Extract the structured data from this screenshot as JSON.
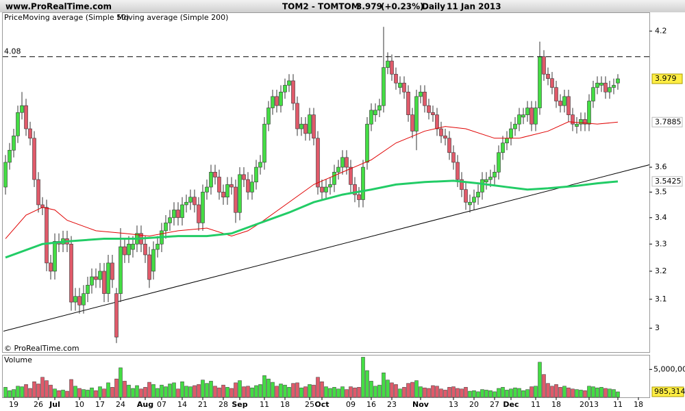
{
  "chart_data": {
    "type": "candlestick",
    "site": "www.ProRealTime.com",
    "title": "TOM2 - TOMTOM",
    "change": {
      "value": 0.23,
      "label": "(+0.23%)"
    },
    "period": "Daily",
    "date": "11 Jan 2013",
    "price_label": "Price",
    "copyright": "© ProRealTime.com",
    "log_scale": true,
    "up_color": "#44dd44",
    "down_color": "#e05a6a",
    "xlim": [
      -0.67,
      156.67
    ],
    "ylim": [
      2.92,
      4.29
    ],
    "yticks": [
      4.2,
      3.6,
      3.5,
      3.4,
      3.3,
      3.2,
      3.1,
      3
    ],
    "xticks": [
      {
        "value": 2,
        "label": "19"
      },
      {
        "value": 8,
        "label": "26"
      },
      {
        "value": 12,
        "label": "Jul"
      },
      {
        "value": 18,
        "label": "10"
      },
      {
        "value": 23,
        "label": "17"
      },
      {
        "value": 28,
        "label": "24"
      },
      {
        "value": 34,
        "label": "Aug"
      },
      {
        "value": 38,
        "label": "07"
      },
      {
        "value": 43,
        "label": "14"
      },
      {
        "value": 48,
        "label": "21"
      },
      {
        "value": 53,
        "label": "28"
      },
      {
        "value": 57,
        "label": "Sep"
      },
      {
        "value": 63,
        "label": "11"
      },
      {
        "value": 68,
        "label": "18"
      },
      {
        "value": 74,
        "label": "25"
      },
      {
        "value": 77,
        "label": "Oct"
      },
      {
        "value": 84,
        "label": "09"
      },
      {
        "value": 89,
        "label": "16"
      },
      {
        "value": 94,
        "label": "23"
      },
      {
        "value": 101,
        "label": "Nov"
      },
      {
        "value": 109,
        "label": "13"
      },
      {
        "value": 114,
        "label": "20"
      },
      {
        "value": 119,
        "label": "27"
      },
      {
        "value": 123,
        "label": "Dec"
      },
      {
        "value": 129,
        "label": "11"
      },
      {
        "value": 134,
        "label": "18"
      },
      {
        "value": 142,
        "label": "2013"
      },
      {
        "value": 149,
        "label": "11"
      },
      {
        "value": 154,
        "label": "18"
      }
    ],
    "open": [
      3.52,
      3.62,
      3.67,
      3.73,
      3.83,
      3.86,
      3.76,
      3.72,
      3.55,
      3.45,
      3.44,
      3.23,
      3.2,
      3.31,
      3.3,
      3.32,
      3.3,
      3.09,
      3.11,
      3.08,
      3.12,
      3.15,
      3.18,
      3.17,
      3.2,
      3.12,
      3.23,
      3.12,
      3.12,
      3.29,
      3.26,
      3.28,
      3.3,
      3.34,
      3.3,
      3.26,
      3.2,
      3.28,
      3.3,
      3.35,
      3.38,
      3.4,
      3.43,
      3.4,
      3.45,
      3.46,
      3.48,
      3.45,
      3.38,
      3.5,
      3.52,
      3.58,
      3.56,
      3.5,
      3.48,
      3.53,
      3.52,
      3.42,
      3.57,
      3.55,
      3.5,
      3.54,
      3.6,
      3.62,
      3.78,
      3.85,
      3.9,
      3.86,
      3.92,
      3.95,
      3.97,
      3.87,
      3.76,
      3.78,
      3.74,
      3.82,
      3.72,
      3.52,
      3.5,
      3.52,
      3.53,
      3.58,
      3.6,
      3.64,
      3.6,
      3.53,
      3.49,
      3.47,
      3.62,
      3.78,
      3.82,
      3.84,
      3.86,
      4.03,
      4.06,
      4.0,
      3.94,
      3.96,
      3.92,
      3.82,
      3.75,
      3.9,
      3.92,
      3.86,
      3.83,
      3.82,
      3.76,
      3.73,
      3.72,
      3.66,
      3.62,
      3.55,
      3.51,
      3.45,
      3.46,
      3.48,
      3.5,
      3.54,
      3.55,
      3.56,
      3.58,
      3.66,
      3.7,
      3.72,
      3.76,
      3.78,
      3.81,
      3.82,
      3.85,
      3.78,
      3.85,
      4.08,
      4.0,
      3.98,
      3.94,
      3.88,
      3.86,
      3.9,
      3.82,
      3.77,
      3.78,
      3.8,
      3.78,
      3.88,
      3.94,
      3.95,
      3.96,
      3.92,
      3.94,
      3.96
    ],
    "high": [
      3.65,
      3.7,
      3.76,
      3.86,
      3.92,
      3.89,
      3.79,
      3.75,
      3.58,
      3.48,
      3.47,
      3.26,
      3.34,
      3.34,
      3.35,
      3.35,
      3.33,
      3.14,
      3.14,
      3.15,
      3.18,
      3.21,
      3.21,
      3.23,
      3.23,
      3.26,
      3.26,
      3.14,
      3.36,
      3.32,
      3.33,
      3.33,
      3.37,
      3.37,
      3.33,
      3.29,
      3.31,
      3.33,
      3.38,
      3.41,
      3.43,
      3.46,
      3.46,
      3.48,
      3.49,
      3.51,
      3.51,
      3.48,
      3.53,
      3.55,
      3.61,
      3.61,
      3.59,
      3.53,
      3.56,
      3.56,
      3.55,
      3.6,
      3.6,
      3.58,
      3.57,
      3.63,
      3.65,
      3.81,
      3.88,
      3.93,
      3.93,
      3.95,
      3.98,
      4.0,
      4.0,
      3.9,
      3.81,
      3.81,
      3.85,
      3.85,
      3.75,
      3.55,
      3.55,
      3.56,
      3.61,
      3.63,
      3.67,
      3.67,
      3.63,
      3.56,
      3.52,
      3.63,
      3.81,
      3.87,
      3.87,
      3.89,
      4.22,
      4.1,
      4.09,
      4.03,
      3.99,
      3.99,
      3.95,
      3.85,
      3.93,
      3.95,
      3.95,
      3.89,
      3.86,
      3.85,
      3.79,
      3.76,
      3.75,
      3.69,
      3.65,
      3.58,
      3.54,
      3.49,
      3.51,
      3.53,
      3.58,
      3.58,
      3.59,
      3.61,
      3.69,
      3.73,
      3.75,
      3.79,
      3.81,
      3.85,
      3.85,
      3.88,
      3.88,
      3.88,
      4.15,
      4.11,
      4.03,
      4.01,
      3.97,
      3.91,
      3.93,
      3.93,
      3.85,
      3.81,
      3.83,
      3.83,
      3.91,
      3.97,
      3.99,
      3.99,
      3.99,
      3.97,
      3.98,
      4.0
    ],
    "low": [
      3.49,
      3.59,
      3.64,
      3.7,
      3.8,
      3.73,
      3.69,
      3.52,
      3.42,
      3.41,
      3.2,
      3.17,
      3.17,
      3.27,
      3.27,
      3.27,
      3.06,
      3.06,
      3.05,
      3.05,
      3.09,
      3.12,
      3.14,
      3.14,
      3.09,
      3.09,
      3.14,
      2.95,
      3.09,
      3.23,
      3.23,
      3.25,
      3.27,
      3.27,
      3.23,
      3.14,
      3.17,
      3.25,
      3.27,
      3.32,
      3.35,
      3.37,
      3.37,
      3.37,
      3.42,
      3.43,
      3.42,
      3.35,
      3.35,
      3.47,
      3.49,
      3.53,
      3.47,
      3.45,
      3.45,
      3.49,
      3.38,
      3.39,
      3.52,
      3.47,
      3.47,
      3.51,
      3.57,
      3.59,
      3.75,
      3.82,
      3.83,
      3.83,
      3.89,
      3.92,
      3.84,
      3.73,
      3.73,
      3.71,
      3.71,
      3.69,
      3.49,
      3.47,
      3.47,
      3.49,
      3.5,
      3.55,
      3.57,
      3.57,
      3.5,
      3.46,
      3.44,
      3.44,
      3.59,
      3.75,
      3.79,
      3.81,
      3.83,
      4.0,
      3.97,
      3.93,
      3.91,
      3.89,
      3.79,
      3.72,
      3.67,
      3.87,
      3.83,
      3.8,
      3.79,
      3.73,
      3.7,
      3.69,
      3.63,
      3.59,
      3.52,
      3.48,
      3.43,
      3.42,
      3.43,
      3.45,
      3.47,
      3.51,
      3.52,
      3.53,
      3.55,
      3.63,
      3.67,
      3.69,
      3.73,
      3.75,
      3.78,
      3.79,
      3.75,
      3.75,
      3.82,
      3.97,
      3.95,
      3.91,
      3.85,
      3.83,
      3.83,
      3.79,
      3.75,
      3.74,
      3.75,
      3.75,
      3.75,
      3.85,
      3.91,
      3.92,
      3.89,
      3.89,
      3.91,
      3.93
    ],
    "close": [
      3.62,
      3.67,
      3.73,
      3.83,
      3.86,
      3.76,
      3.72,
      3.55,
      3.45,
      3.44,
      3.23,
      3.2,
      3.31,
      3.3,
      3.32,
      3.3,
      3.09,
      3.11,
      3.08,
      3.12,
      3.15,
      3.18,
      3.17,
      3.2,
      3.12,
      3.23,
      3.17,
      2.97,
      3.29,
      3.26,
      3.3,
      3.3,
      3.34,
      3.3,
      3.26,
      3.17,
      3.28,
      3.3,
      3.35,
      3.38,
      3.4,
      3.43,
      3.4,
      3.45,
      3.46,
      3.48,
      3.45,
      3.38,
      3.5,
      3.52,
      3.58,
      3.56,
      3.5,
      3.48,
      3.53,
      3.52,
      3.42,
      3.57,
      3.55,
      3.5,
      3.54,
      3.6,
      3.62,
      3.78,
      3.85,
      3.9,
      3.86,
      3.92,
      3.95,
      3.97,
      3.87,
      3.76,
      3.78,
      3.74,
      3.82,
      3.72,
      3.52,
      3.5,
      3.52,
      3.53,
      3.58,
      3.6,
      3.64,
      3.6,
      3.53,
      3.49,
      3.47,
      3.6,
      3.78,
      3.84,
      3.84,
      3.86,
      4.03,
      4.06,
      4.0,
      3.96,
      3.96,
      3.92,
      3.82,
      3.75,
      3.9,
      3.92,
      3.86,
      3.83,
      3.82,
      3.76,
      3.73,
      3.72,
      3.66,
      3.62,
      3.55,
      3.51,
      3.46,
      3.46,
      3.48,
      3.5,
      3.55,
      3.55,
      3.56,
      3.58,
      3.66,
      3.7,
      3.72,
      3.76,
      3.78,
      3.82,
      3.82,
      3.85,
      3.78,
      3.85,
      4.08,
      4.0,
      3.98,
      3.94,
      3.88,
      3.86,
      3.9,
      3.82,
      3.78,
      3.78,
      3.8,
      3.78,
      3.88,
      3.94,
      3.96,
      3.96,
      3.92,
      3.94,
      3.95,
      3.979
    ],
    "series": [
      {
        "name": "Moving average (Simple 50)",
        "color": "#e00000",
        "width": 1,
        "x": [
          0,
          5,
          9,
          12,
          15,
          22,
          29,
          35,
          42,
          49,
          55,
          59,
          62,
          69,
          75,
          82,
          89,
          95,
          102,
          107,
          112,
          119,
          125,
          132,
          137,
          144,
          149
        ],
        "values": [
          3.32,
          3.41,
          3.44,
          3.43,
          3.39,
          3.35,
          3.34,
          3.33,
          3.35,
          3.36,
          3.33,
          3.35,
          3.38,
          3.46,
          3.53,
          3.58,
          3.63,
          3.7,
          3.75,
          3.77,
          3.76,
          3.72,
          3.72,
          3.75,
          3.79,
          3.78,
          3.7885
        ]
      },
      {
        "name": "Moving average (Simple 200)",
        "color": "#22cc66",
        "width": 3,
        "x": [
          0,
          9,
          15,
          24,
          32,
          42,
          49,
          55,
          62,
          69,
          75,
          82,
          89,
          95,
          102,
          109,
          115,
          122,
          127,
          132,
          139,
          144,
          149
        ],
        "values": [
          3.25,
          3.3,
          3.31,
          3.32,
          3.32,
          3.33,
          3.33,
          3.34,
          3.38,
          3.42,
          3.46,
          3.49,
          3.51,
          3.53,
          3.54,
          3.545,
          3.535,
          3.52,
          3.51,
          3.515,
          3.525,
          3.535,
          3.5425
        ]
      }
    ],
    "trendline": {
      "x": [
        -0.5,
        156.7
      ],
      "values": [
        2.99,
        3.61
      ],
      "color": "#000000"
    },
    "hline": 4.08,
    "volume": {
      "title": "Volume",
      "color": "#22cc66",
      "ylim": [
        0,
        7500000
      ],
      "yticks": [
        {
          "value": 5000000,
          "label": "5,000,000"
        }
      ],
      "last_label": "985,314",
      "values": [
        1800000,
        1200000,
        1400000,
        2000000,
        1900000,
        2300000,
        1600000,
        2800000,
        2400000,
        3600000,
        3000000,
        2200000,
        1500000,
        1200000,
        1300000,
        1100000,
        3200000,
        2000000,
        1600000,
        1400000,
        1300000,
        1700000,
        1200000,
        1900000,
        1500000,
        2600000,
        1800000,
        3300000,
        5300000,
        2900000,
        2200000,
        1600000,
        2100000,
        1500000,
        1800000,
        2700000,
        2300000,
        1600000,
        2200000,
        1900000,
        2400000,
        2600000,
        1500000,
        2800000,
        2000000,
        1900000,
        2100000,
        2300000,
        3100000,
        2500000,
        2900000,
        2000000,
        1700000,
        2200000,
        1800000,
        1600000,
        2600000,
        3000000,
        1900000,
        2000000,
        1700000,
        2100000,
        2300000,
        3900000,
        3300000,
        2700000,
        2000000,
        2400000,
        2200000,
        1800000,
        2500000,
        2600000,
        1700000,
        1900000,
        2300000,
        2200000,
        3600000,
        2800000,
        1900000,
        1600000,
        1800000,
        1500000,
        1900000,
        1400000,
        1900000,
        1700000,
        1800000,
        7200000,
        4800000,
        2900000,
        2000000,
        2200000,
        4400000,
        3100000,
        2600000,
        2300000,
        1500000,
        1800000,
        2500000,
        2700000,
        3000000,
        1900000,
        1700000,
        1600000,
        2100000,
        2000000,
        1500000,
        1300000,
        1800000,
        1900000,
        1600000,
        1500000,
        1800000,
        1100000,
        1200000,
        1000000,
        1400000,
        1300000,
        1200000,
        1000000,
        1600000,
        1800000,
        1300000,
        1500000,
        1700000,
        1600000,
        1200000,
        1400000,
        1900000,
        2000000,
        6300000,
        4100000,
        2500000,
        2000000,
        2300000,
        1800000,
        2000000,
        1700000,
        1500000,
        1400000,
        1300000,
        1200000,
        2000000,
        1900000,
        1700000,
        1800000,
        1600000,
        1500000,
        1400000,
        985314
      ]
    }
  }
}
